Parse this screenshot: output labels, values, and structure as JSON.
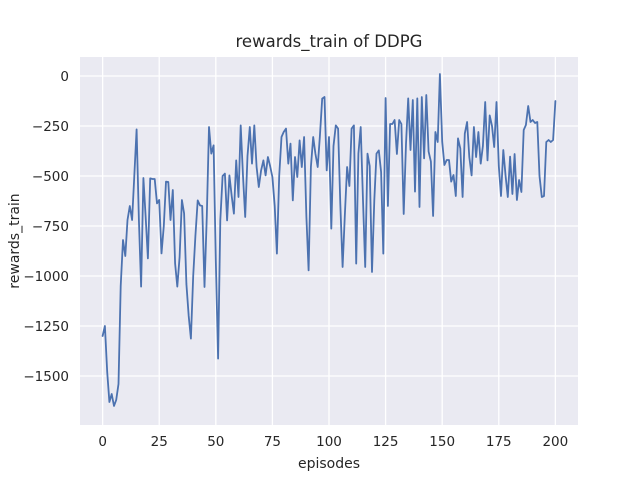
{
  "figure": {
    "background": "#ffffff",
    "text_color": "#262626"
  },
  "chart_data": {
    "type": "line",
    "title": "rewards_train of DDPG",
    "xlabel": "episodes",
    "ylabel": "rewards_train",
    "x_ticks": [
      0,
      25,
      50,
      75,
      100,
      125,
      150,
      175,
      200
    ],
    "y_ticks": [
      0,
      -250,
      -500,
      -750,
      -1000,
      -1250,
      -1500
    ],
    "xlim": [
      -10,
      210
    ],
    "ylim": [
      -1745,
      95
    ],
    "grid": true,
    "legend_position": "none",
    "plot_bg_color": "#EAEAF2",
    "grid_color": "#ffffff",
    "line_color": "#4C72B0",
    "series": [
      {
        "name": "rewards_train",
        "x_start": 0,
        "x_step": 1,
        "n_points": 201,
        "values": [
          -1300,
          -1250,
          -1480,
          -1630,
          -1590,
          -1650,
          -1620,
          -1540,
          -1050,
          -820,
          -900,
          -720,
          -650,
          -720,
          -500,
          -267,
          -720,
          -1053,
          -510,
          -700,
          -912,
          -512,
          -515,
          -515,
          -637,
          -620,
          -887,
          -750,
          -528,
          -530,
          -720,
          -570,
          -937,
          -1053,
          -905,
          -620,
          -687,
          -1040,
          -1200,
          -1313,
          -1000,
          -800,
          -622,
          -647,
          -650,
          -1055,
          -700,
          -255,
          -388,
          -347,
          -922,
          -1413,
          -722,
          -500,
          -488,
          -722,
          -497,
          -600,
          -688,
          -422,
          -605,
          -247,
          -500,
          -705,
          -400,
          -255,
          -438,
          -247,
          -455,
          -555,
          -472,
          -422,
          -497,
          -405,
          -450,
          -505,
          -650,
          -888,
          -500,
          -305,
          -280,
          -263,
          -438,
          -338,
          -622,
          -405,
          -505,
          -322,
          -455,
          -305,
          -705,
          -972,
          -455,
          -305,
          -388,
          -455,
          -300,
          -113,
          -105,
          -472,
          -305,
          -763,
          -350,
          -247,
          -263,
          -638,
          -955,
          -700,
          -455,
          -550,
          -263,
          -247,
          -938,
          -388,
          -255,
          -622,
          -955,
          -388,
          -450,
          -980,
          -622,
          -388,
          -372,
          -480,
          -888,
          -110,
          -650,
          -240,
          -240,
          -220,
          -390,
          -220,
          -240,
          -690,
          -340,
          -112,
          -370,
          -120,
          -578,
          -112,
          -655,
          -105,
          -412,
          -95,
          -378,
          -428,
          -700,
          -280,
          -330,
          10,
          -328,
          -445,
          -420,
          -420,
          -528,
          -495,
          -600,
          -312,
          -362,
          -605,
          -288,
          -230,
          -405,
          -497,
          -255,
          -405,
          -280,
          -438,
          -350,
          -130,
          -422,
          -197,
          -250,
          -355,
          -130,
          -450,
          -600,
          -370,
          -500,
          -605,
          -403,
          -590,
          -390,
          -620,
          -520,
          -580,
          -270,
          -245,
          -150,
          -230,
          -220,
          -235,
          -230,
          -500,
          -605,
          -600,
          -330,
          -320,
          -330,
          -320,
          -125
        ]
      }
    ]
  }
}
